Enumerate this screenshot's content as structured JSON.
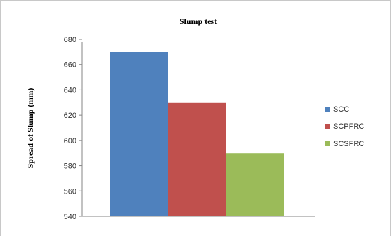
{
  "chart_data": {
    "type": "bar",
    "title": "Slump test",
    "xlabel": "",
    "ylabel": "Spread of Slump (mm)",
    "categories": [
      ""
    ],
    "series": [
      {
        "name": "SCC",
        "values": [
          670
        ],
        "color": "#4f81bd"
      },
      {
        "name": "SCPFRC",
        "values": [
          630
        ],
        "color": "#c0504d"
      },
      {
        "name": "SCSFRC",
        "values": [
          590
        ],
        "color": "#9bbb59"
      }
    ],
    "ylim": [
      540,
      680
    ],
    "yticks": [
      540,
      560,
      580,
      600,
      620,
      640,
      660,
      680
    ],
    "grid": false,
    "legend_position": "right"
  }
}
